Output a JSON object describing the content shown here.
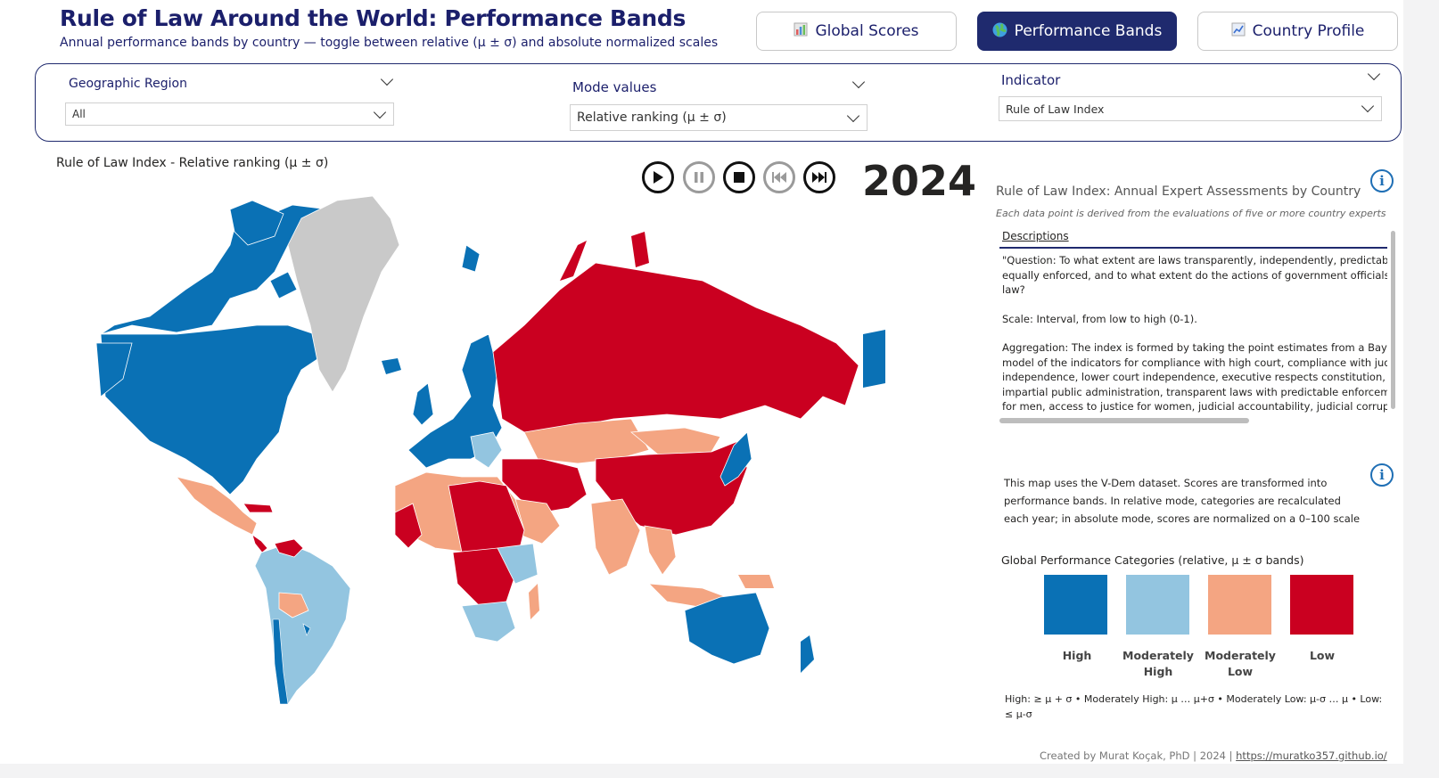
{
  "header": {
    "title": "Rule of Law Around the World: Performance Bands",
    "subtitle": "Annual performance bands by country — toggle between relative (μ ± σ) and absolute normalized scales"
  },
  "nav": {
    "global_scores": "Global Scores",
    "performance_bands": "Performance Bands",
    "country_profile": "Country Profile"
  },
  "filters": {
    "region_label": "Geographic Region",
    "region_value": "All",
    "mode_label": "Mode values",
    "mode_value": "Relative ranking (μ ± σ)",
    "indicator_label": "Indicator",
    "indicator_value": "Rule of Law Index"
  },
  "map": {
    "title": "Rule of Law Index - Relative ranking (μ ± σ)",
    "year": "2024"
  },
  "details": {
    "title": "Rule of Law Index: Annual Expert Assessments by Country",
    "subtitle": "Each data point is derived from the evaluations of five or more country experts",
    "descriptions_header": "Descriptions",
    "question": "\"Question: To what extent are laws transparently, independently, predictably, impartially, and equally enforced, and to what extent do the actions of government officials comply with the law?",
    "scale": "Scale: Interval, from low to high (0-1).",
    "aggregation": "Aggregation: The index is formed by taking the point estimates from a Bayesian factor analysis model of the indicators for compliance with high court, compliance with judiciary, high court independence, lower court independence, executive respects constitution, rigorous and impartial public administration, transparent laws with predictable enforcement, access to justice for men, access to justice for women, judicial accountability, judicial corruption decision, public sector corrupt exchanges, public sector theft, executive bribery and corrupt exchanges, executive embezzlement and theft.\" (V-Dem Codebook, 2024, p. 289)",
    "note": "This map uses the V-Dem dataset. Scores are transformed into performance bands. In relative mode, categories are recalculated each year; in absolute mode, scores are normalized on a 0–100 scale"
  },
  "legend": {
    "title": "Global Performance Categories (relative, μ ± σ bands)",
    "categories": [
      {
        "label": "High",
        "color": "#0a71b5"
      },
      {
        "label": "Moderately High",
        "color": "#93c5e0"
      },
      {
        "label": "Moderately Low",
        "color": "#f4a582"
      },
      {
        "label": "Low",
        "color": "#ca0020"
      }
    ],
    "footnote": "High: ≥ μ + σ • Moderately High: μ … μ+σ • Moderately Low: μ-σ … μ • Low: ≤ μ-σ"
  },
  "footer": {
    "credit": "Created by Murat Koçak, PhD | 2024 |",
    "link": "https://muratko357.github.io/"
  }
}
